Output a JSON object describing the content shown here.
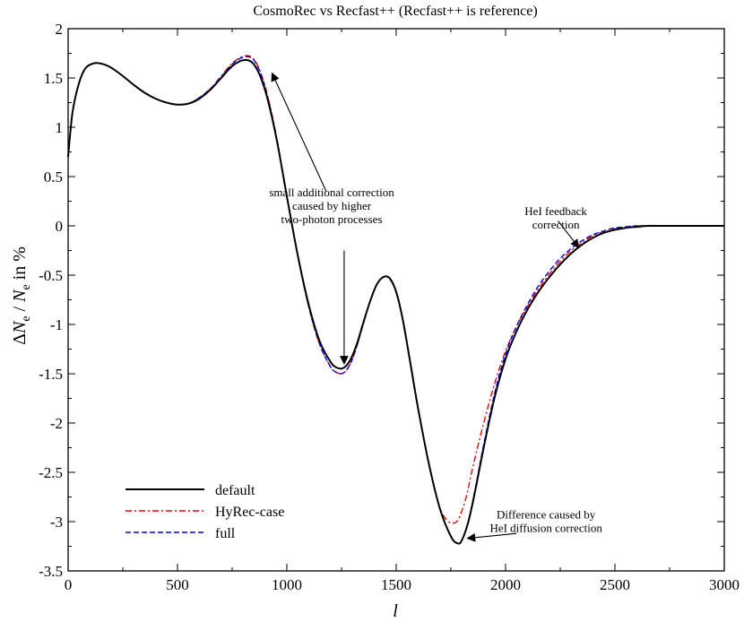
{
  "chart_data": {
    "type": "line",
    "title": "CosmoRec vs Recfast++ (Recfast++ is reference)",
    "xlabel": "l",
    "ylabel_parts": [
      "ΔN",
      "e",
      " / N",
      "e",
      "  in %"
    ],
    "xlim": [
      0,
      3000
    ],
    "ylim": [
      -3.5,
      2
    ],
    "xticks": [
      "0",
      "500",
      "1000",
      "1500",
      "2000",
      "2500",
      "3000"
    ],
    "yticks": [
      "-3.5",
      "-3",
      "-2.5",
      "-2",
      "-1.5",
      "-1",
      "-0.5",
      "0",
      "0.5",
      "1",
      "1.5",
      "2"
    ],
    "grid": false,
    "legend_position": "bottom-left",
    "series": [
      {
        "name": "default",
        "color": "#000000",
        "dash": "solid",
        "x": [
          0,
          20,
          50,
          80,
          120,
          160,
          200,
          250,
          300,
          350,
          400,
          450,
          500,
          550,
          600,
          650,
          700,
          750,
          800,
          840,
          870,
          900,
          930,
          960,
          1000,
          1050,
          1100,
          1150,
          1200,
          1230,
          1260,
          1290,
          1320,
          1350,
          1380,
          1410,
          1440,
          1470,
          1500,
          1530,
          1560,
          1600,
          1650,
          1700,
          1750,
          1780,
          1800,
          1830,
          1860,
          1900,
          1950,
          2000,
          2050,
          2100,
          2150,
          2200,
          2250,
          2300,
          2350,
          2400,
          2450,
          2500,
          2550,
          2600,
          2650,
          2700,
          2800,
          2900,
          3000
        ],
        "y": [
          0.7,
          1.15,
          1.45,
          1.6,
          1.65,
          1.64,
          1.6,
          1.52,
          1.43,
          1.35,
          1.29,
          1.25,
          1.23,
          1.24,
          1.29,
          1.38,
          1.5,
          1.62,
          1.68,
          1.66,
          1.56,
          1.38,
          1.12,
          0.8,
          0.3,
          -0.3,
          -0.8,
          -1.17,
          -1.38,
          -1.44,
          -1.44,
          -1.36,
          -1.2,
          -0.98,
          -0.77,
          -0.6,
          -0.52,
          -0.53,
          -0.67,
          -0.95,
          -1.33,
          -1.85,
          -2.42,
          -2.87,
          -3.15,
          -3.22,
          -3.19,
          -3.0,
          -2.7,
          -2.25,
          -1.74,
          -1.35,
          -1.07,
          -0.85,
          -0.67,
          -0.52,
          -0.39,
          -0.28,
          -0.19,
          -0.12,
          -0.07,
          -0.04,
          -0.02,
          -0.01,
          0.0,
          0.0,
          0.0,
          0.0,
          0.0
        ]
      },
      {
        "name": "HyRec-case",
        "color": "#ff0000",
        "dash": "dashdot",
        "x": [
          0,
          20,
          50,
          80,
          120,
          160,
          200,
          250,
          300,
          350,
          400,
          450,
          500,
          550,
          600,
          650,
          700,
          750,
          800,
          840,
          870,
          900,
          930,
          960,
          1000,
          1050,
          1100,
          1150,
          1200,
          1230,
          1260,
          1290,
          1320,
          1350,
          1380,
          1410,
          1440,
          1470,
          1500,
          1530,
          1560,
          1600,
          1650,
          1700,
          1740,
          1770,
          1790,
          1820,
          1850,
          1900,
          1950,
          2000,
          2050,
          2100,
          2150,
          2200,
          2250,
          2300,
          2350,
          2400,
          2450,
          2500,
          2550,
          2600,
          2650,
          2700,
          2800,
          2900,
          3000
        ],
        "y": [
          0.7,
          1.15,
          1.45,
          1.6,
          1.65,
          1.64,
          1.6,
          1.52,
          1.43,
          1.35,
          1.29,
          1.25,
          1.23,
          1.24,
          1.3,
          1.39,
          1.52,
          1.65,
          1.72,
          1.71,
          1.61,
          1.42,
          1.15,
          0.82,
          0.31,
          -0.3,
          -0.82,
          -1.2,
          -1.43,
          -1.49,
          -1.49,
          -1.4,
          -1.22,
          -0.99,
          -0.77,
          -0.6,
          -0.52,
          -0.54,
          -0.68,
          -0.96,
          -1.34,
          -1.86,
          -2.42,
          -2.86,
          -3.0,
          -3.01,
          -2.95,
          -2.75,
          -2.45,
          -2.0,
          -1.6,
          -1.27,
          -1.02,
          -0.82,
          -0.64,
          -0.49,
          -0.36,
          -0.25,
          -0.17,
          -0.1,
          -0.06,
          -0.03,
          -0.01,
          0.0,
          0.0,
          0.0,
          0.0,
          0.0,
          0.0
        ]
      },
      {
        "name": "full",
        "color": "#0000ff",
        "dash": "dashed",
        "x": [
          0,
          20,
          50,
          80,
          120,
          160,
          200,
          250,
          300,
          350,
          400,
          450,
          500,
          550,
          600,
          650,
          700,
          750,
          800,
          840,
          870,
          900,
          930,
          960,
          1000,
          1050,
          1100,
          1150,
          1200,
          1230,
          1260,
          1290,
          1320,
          1350,
          1380,
          1410,
          1440,
          1470,
          1500,
          1530,
          1560,
          1600,
          1650,
          1700,
          1750,
          1780,
          1800,
          1830,
          1860,
          1900,
          1950,
          2000,
          2050,
          2100,
          2150,
          2200,
          2250,
          2300,
          2350,
          2400,
          2450,
          2500,
          2550,
          2600,
          2650,
          2700,
          2800,
          2900,
          3000
        ],
        "y": [
          0.7,
          1.15,
          1.45,
          1.6,
          1.65,
          1.64,
          1.6,
          1.52,
          1.43,
          1.35,
          1.29,
          1.25,
          1.23,
          1.24,
          1.3,
          1.39,
          1.51,
          1.64,
          1.71,
          1.7,
          1.6,
          1.41,
          1.14,
          0.81,
          0.3,
          -0.3,
          -0.82,
          -1.2,
          -1.43,
          -1.49,
          -1.49,
          -1.4,
          -1.22,
          -0.99,
          -0.77,
          -0.6,
          -0.52,
          -0.53,
          -0.67,
          -0.95,
          -1.33,
          -1.85,
          -2.42,
          -2.87,
          -3.15,
          -3.22,
          -3.19,
          -3.0,
          -2.68,
          -2.22,
          -1.7,
          -1.3,
          -1.02,
          -0.8,
          -0.61,
          -0.46,
          -0.33,
          -0.23,
          -0.15,
          -0.09,
          -0.05,
          -0.02,
          -0.01,
          0.0,
          0.0,
          0.0,
          0.0,
          0.0,
          0.0
        ]
      }
    ],
    "annotations": [
      {
        "lines": [
          "small additional correction",
          "caused by higher",
          "two-photon processes"
        ],
        "text_pos": [
          1205,
          0.3
        ],
        "arrows": [
          {
            "from": [
              1180,
              0.35
            ],
            "to": [
              932,
              1.55
            ]
          },
          {
            "from": [
              1262,
              -0.25
            ],
            "to": [
              1262,
              -1.4
            ]
          }
        ]
      },
      {
        "lines": [
          "HeI feedback",
          "correction"
        ],
        "text_pos": [
          2230,
          0.11
        ],
        "arrows": [
          {
            "from": [
              2240,
              0.05
            ],
            "to": [
              2335,
              -0.22
            ]
          }
        ]
      },
      {
        "lines": [
          "Difference caused by",
          "HeI diffusion correction"
        ],
        "text_pos": [
          2185,
          -2.97
        ],
        "arrows": [
          {
            "from": [
              2050,
              -3.12
            ],
            "to": [
              1825,
              -3.17
            ]
          }
        ]
      }
    ]
  }
}
